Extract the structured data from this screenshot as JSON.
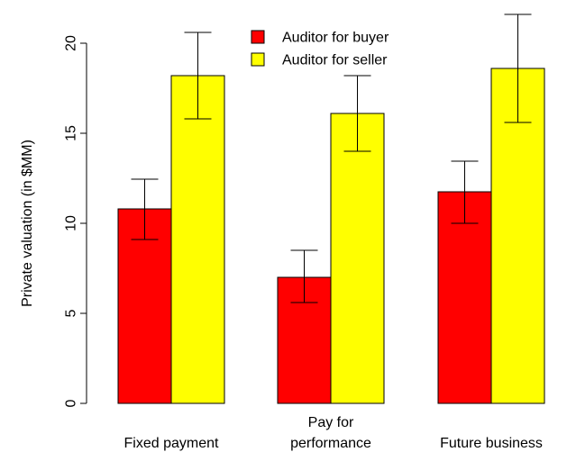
{
  "chart_data": {
    "type": "bar",
    "title": "",
    "xlabel": "",
    "ylabel": "Private valuation (in $MM)",
    "ylim": [
      0,
      21.5
    ],
    "yticks": [
      0,
      5,
      10,
      15,
      20
    ],
    "categories": [
      {
        "lines": [
          "Fixed payment"
        ]
      },
      {
        "lines": [
          "Pay for",
          "performance"
        ]
      },
      {
        "lines": [
          "Future business"
        ]
      }
    ],
    "series": [
      {
        "name": "Auditor for buyer",
        "color": "#ff0000",
        "values": [
          10.8,
          7.0,
          11.75
        ],
        "error_low": [
          9.1,
          5.6,
          10.0
        ],
        "error_high": [
          12.45,
          8.5,
          13.45
        ]
      },
      {
        "name": "Auditor for seller",
        "color": "#ffff00",
        "values": [
          18.2,
          16.1,
          18.6
        ],
        "error_low": [
          15.8,
          14.0,
          15.6
        ],
        "error_high": [
          20.6,
          18.2,
          21.6
        ]
      }
    ],
    "legend": "top-center",
    "grid": false
  }
}
